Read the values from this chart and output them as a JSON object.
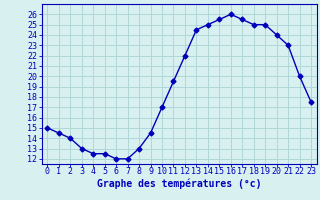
{
  "x": [
    0,
    1,
    2,
    3,
    4,
    5,
    6,
    7,
    8,
    9,
    10,
    11,
    12,
    13,
    14,
    15,
    16,
    17,
    18,
    19,
    20,
    21,
    22,
    23
  ],
  "y": [
    15.0,
    14.5,
    14.0,
    13.0,
    12.5,
    12.5,
    12.0,
    12.0,
    13.0,
    14.5,
    17.0,
    19.5,
    22.0,
    24.5,
    25.0,
    25.5,
    26.0,
    25.5,
    25.0,
    25.0,
    24.0,
    23.0,
    20.0,
    17.5
  ],
  "line_color": "#0000bb",
  "marker": "D",
  "marker_size": 2.5,
  "background_color": "#d8f0f0",
  "grid_color": "#b0d8d8",
  "xlabel": "Graphe des températures (°c)",
  "xlabel_fontsize": 7,
  "ylabel_ticks": [
    12,
    13,
    14,
    15,
    16,
    17,
    18,
    19,
    20,
    21,
    22,
    23,
    24,
    25,
    26
  ],
  "xtick_labels": [
    "0",
    "1",
    "2",
    "3",
    "4",
    "5",
    "6",
    "7",
    "8",
    "9",
    "10",
    "11",
    "12",
    "13",
    "14",
    "15",
    "16",
    "17",
    "18",
    "19",
    "20",
    "21",
    "22",
    "23"
  ],
  "xlim": [
    -0.5,
    23.5
  ],
  "ylim": [
    11.5,
    27.0
  ],
  "tick_fontsize": 6,
  "axes_color": "#0000bb",
  "linewidth": 1.0
}
